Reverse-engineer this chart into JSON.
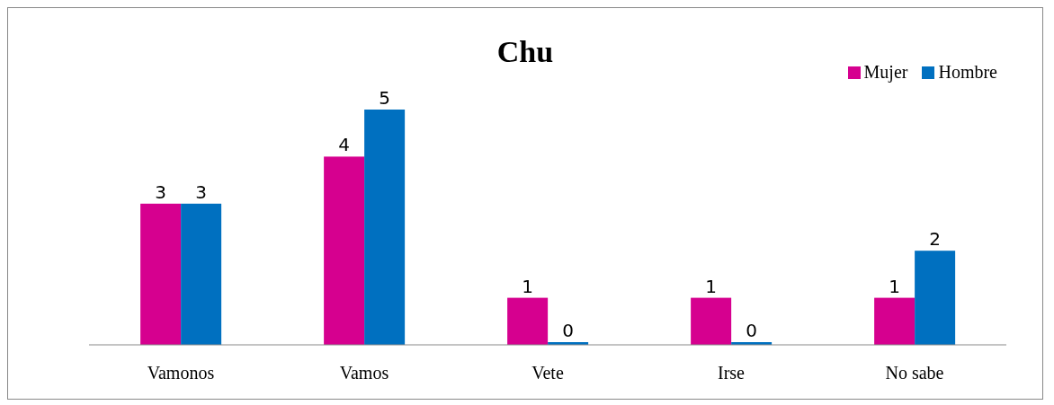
{
  "chart_data": {
    "type": "bar",
    "title": "Chu",
    "categories": [
      "Vamonos",
      "Vamos",
      "Vete",
      "Irse",
      "No sabe"
    ],
    "series": [
      {
        "name": "Mujer",
        "color": "#d6008f",
        "values": [
          3,
          4,
          1,
          1,
          1
        ]
      },
      {
        "name": "Hombre",
        "color": "#0070c0",
        "values": [
          3,
          5,
          0,
          0,
          2
        ]
      }
    ],
    "data_labels": true,
    "legend": "top right"
  }
}
